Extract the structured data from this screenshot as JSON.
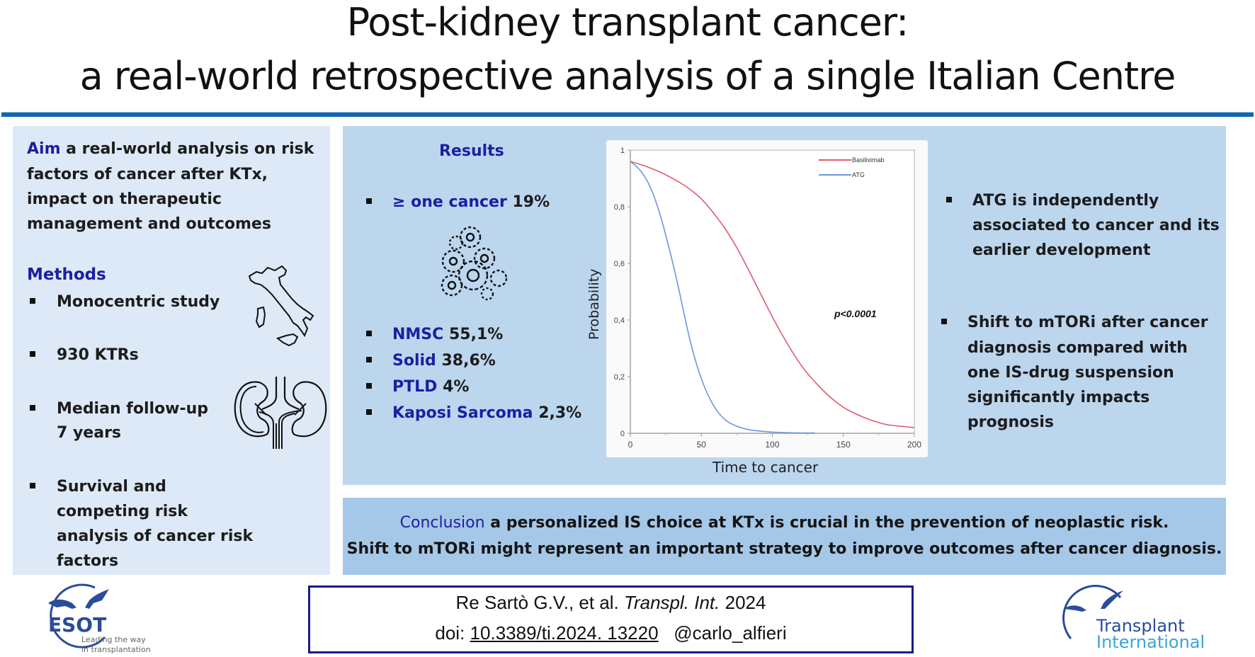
{
  "header": {
    "title_line1": "Post-kidney transplant cancer:",
    "title_line2": "a real-world retrospective analysis of a single Italian Centre"
  },
  "aim": {
    "label": "Aim",
    "lines": [
      "a real-world analysis on risk",
      "factors of cancer after KTx,",
      "impact on therapeutic",
      "management and outcomes"
    ]
  },
  "methods": {
    "label": "Methods",
    "items": [
      {
        "lines": [
          "Monocentric study"
        ]
      },
      {
        "lines": [
          "930 KTRs"
        ]
      },
      {
        "lines": [
          "Median follow-up",
          "7 years"
        ]
      },
      {
        "lines": [
          "Survival and",
          "competing risk",
          "analysis of cancer risk",
          "factors"
        ]
      }
    ],
    "icons": [
      "italy-map-icon",
      "kidney-icon"
    ]
  },
  "results": {
    "label": "Results",
    "headline": {
      "label": "≥ one cancer",
      "value": "19%"
    },
    "types": [
      {
        "label": "NMSC",
        "value": "55,1%"
      },
      {
        "label": "Solid",
        "value": "38,6%"
      },
      {
        "label": "PTLD",
        "value": "4%"
      },
      {
        "label": "Kaposi Sarcoma",
        "value": "2,3%"
      }
    ],
    "findings": [
      {
        "lines": [
          "ATG is independently",
          "associated to cancer and its",
          "earlier development"
        ]
      },
      {
        "lines": [
          "Shift to mTORi after cancer",
          "diagnosis compared with",
          "one IS-drug suspension",
          "significantly impacts",
          "prognosis"
        ]
      }
    ]
  },
  "chart_data": {
    "type": "line",
    "title": "",
    "xlabel": "Time to cancer",
    "ylabel": "Probability",
    "xlim": [
      0,
      200
    ],
    "ylim": [
      0,
      1
    ],
    "xticks": [
      0,
      50,
      100,
      150,
      200
    ],
    "xtick_labels": [
      "0",
      "50",
      "100",
      "150",
      "200"
    ],
    "yticks": [
      0,
      0.2,
      0.4,
      0.6,
      0.8,
      1
    ],
    "ytick_labels": [
      "0",
      "0,2",
      "0,4",
      "0,6",
      "0,8",
      "1"
    ],
    "grid": false,
    "legend_position": "top-right",
    "annotation": "p<0.0001",
    "series": [
      {
        "name": "Basiliximab",
        "color": "#e05a6e",
        "x": [
          0,
          10,
          20,
          30,
          40,
          50,
          60,
          70,
          80,
          90,
          100,
          110,
          120,
          130,
          140,
          150,
          160,
          170,
          180,
          190,
          200
        ],
        "y": [
          0.96,
          0.945,
          0.925,
          0.9,
          0.87,
          0.83,
          0.77,
          0.7,
          0.61,
          0.51,
          0.41,
          0.32,
          0.24,
          0.18,
          0.13,
          0.09,
          0.065,
          0.045,
          0.03,
          0.025,
          0.02
        ]
      },
      {
        "name": "ATG",
        "color": "#6f95dc",
        "x": [
          0,
          5,
          10,
          15,
          20,
          25,
          30,
          35,
          40,
          45,
          50,
          55,
          60,
          65,
          70,
          80,
          90,
          100,
          110,
          120,
          130
        ],
        "y": [
          0.96,
          0.94,
          0.91,
          0.86,
          0.79,
          0.7,
          0.6,
          0.49,
          0.37,
          0.27,
          0.19,
          0.13,
          0.085,
          0.055,
          0.035,
          0.015,
          0.008,
          0.004,
          0.002,
          0.001,
          0.001
        ]
      }
    ]
  },
  "conclusion": {
    "label": "Conclusion",
    "line1_rest": "a personalized IS choice at KTx is crucial in the prevention of neoplastic risk.",
    "line2": "Shift to mTORi might represent an important strategy to improve outcomes after cancer diagnosis."
  },
  "reference": {
    "authors": "Re Sartò G.V., et al.",
    "journal": "Transpl. Int.",
    "year": "2024",
    "doi_prefix": "doi:",
    "doi": "10.3389/ti.2024. 13220",
    "handle": "@carlo_alfieri"
  },
  "logos": {
    "esot": {
      "name": "ESOT",
      "tagline_1": "Leading the way",
      "tagline_2": "in transplantation"
    },
    "ti": {
      "line1": "Transplant",
      "line2": "International"
    }
  },
  "colors": {
    "accent_blue": "#1b1fa0",
    "rule_blue": "#1565b0",
    "basiliximab": "#e05a6e",
    "atg": "#6f95dc"
  }
}
